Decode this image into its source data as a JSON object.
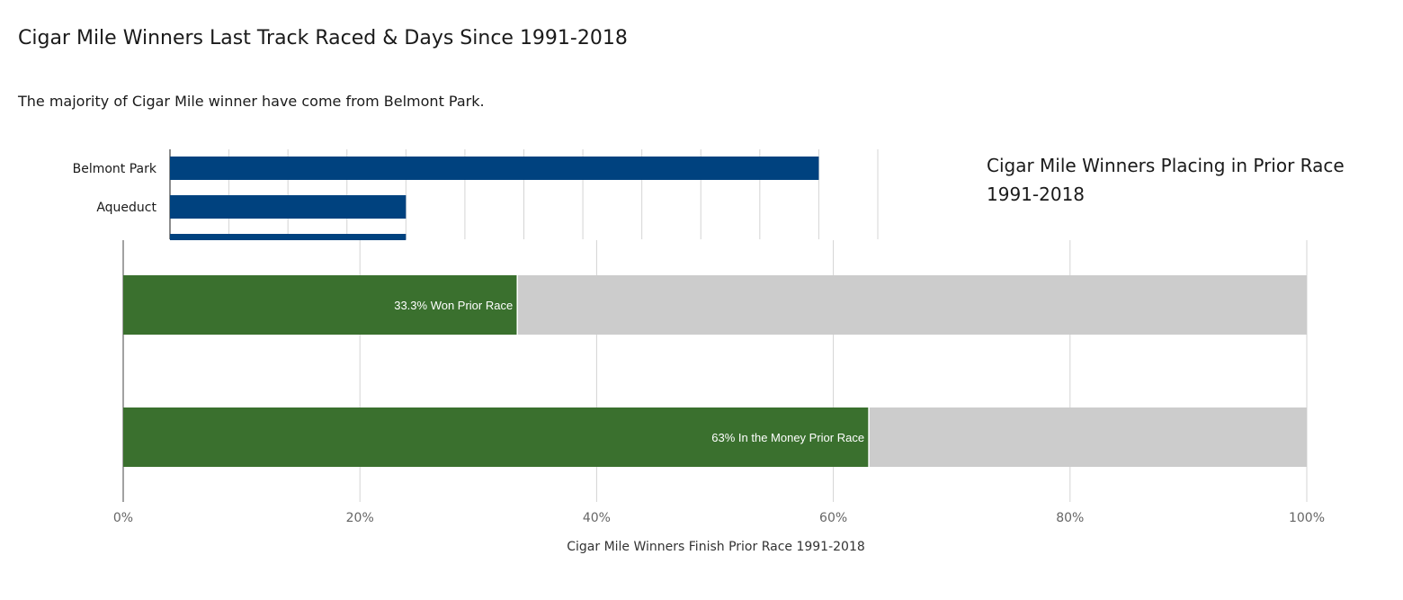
{
  "header": {
    "title": "Cigar Mile Winners Last Track Raced & Days Since 1991-2018",
    "subtitle": "The majority of Cigar Mile winner have come from Belmont Park."
  },
  "colors": {
    "track_bar": "#00427f",
    "won_bar": "#3a702e",
    "remaining_bar": "#cccccc",
    "grid": "#d4d4d4",
    "axis": "#666666"
  },
  "chart_data": [
    {
      "type": "bar",
      "orientation": "horizontal",
      "title": "",
      "categories": [
        "Belmont Park",
        "Aqueduct",
        ""
      ],
      "values": [
        55,
        20,
        20
      ],
      "xlim": [
        0,
        60
      ],
      "grid": true,
      "note": "chart is partially hidden behind the placing chart"
    },
    {
      "type": "bar",
      "orientation": "horizontal",
      "stacked": true,
      "title_lines": [
        "Cigar Mile Winners Placing in Prior Race",
        "1991-2018"
      ],
      "xlabel": "Cigar Mile Winners Finish Prior Race 1991-2018",
      "xlim": [
        0,
        100
      ],
      "x_ticks": [
        0,
        20,
        40,
        60,
        80,
        100
      ],
      "x_tick_labels": [
        "0%",
        "20%",
        "40%",
        "60%",
        "80%",
        "100%"
      ],
      "grid": true,
      "bars": [
        {
          "value": 33.3,
          "total": 100,
          "label": "33.3% Won Prior Race"
        },
        {
          "value": 63,
          "total": 100,
          "label": "63% In the Money Prior Race"
        }
      ]
    }
  ]
}
